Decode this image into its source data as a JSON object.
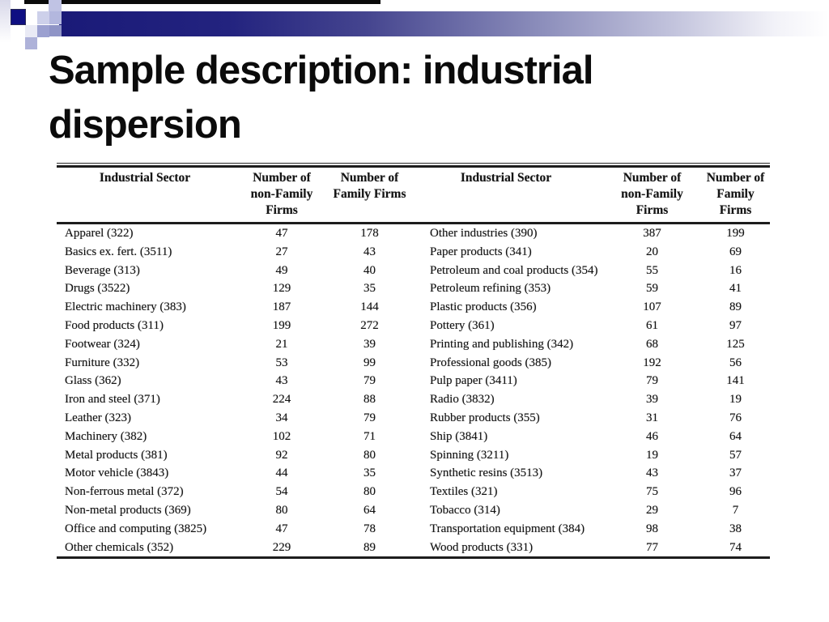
{
  "slide": {
    "title": "Sample description: industrial dispersion"
  },
  "decoration": {
    "accent_navy": "#1a1a78",
    "mosaic_light": "#cdd0ea",
    "mosaic_medium": "#9ba0d0"
  },
  "table": {
    "header": {
      "sector": "Industrial Sector",
      "nonfamily": "Number of\nnon-Family\nFirms",
      "family": "Number of\nFamily Firms"
    },
    "rows": [
      [
        "Apparel (322)",
        "47",
        "178",
        "Other industries (390)",
        "387",
        "199"
      ],
      [
        "Basics ex. fert. (3511)",
        "27",
        "43",
        "Paper products (341)",
        "20",
        "69"
      ],
      [
        "Beverage (313)",
        "49",
        "40",
        "Petroleum and coal products (354)",
        "55",
        "16"
      ],
      [
        "Drugs (3522)",
        "129",
        "35",
        "Petroleum refining (353)",
        "59",
        "41"
      ],
      [
        "Electric machinery (383)",
        "187",
        "144",
        "Plastic products (356)",
        "107",
        "89"
      ],
      [
        "Food products (311)",
        "199",
        "272",
        "Pottery (361)",
        "61",
        "97"
      ],
      [
        "Footwear (324)",
        "21",
        "39",
        "Printing and publishing (342)",
        "68",
        "125"
      ],
      [
        "Furniture (332)",
        "53",
        "99",
        "Professional goods (385)",
        "192",
        "56"
      ],
      [
        "Glass (362)",
        "43",
        "79",
        "Pulp paper (3411)",
        "79",
        "141"
      ],
      [
        "Iron and steel (371)",
        "224",
        "88",
        "Radio (3832)",
        "39",
        "19"
      ],
      [
        "Leather (323)",
        "34",
        "79",
        "Rubber products (355)",
        "31",
        "76"
      ],
      [
        "Machinery (382)",
        "102",
        "71",
        "Ship (3841)",
        "46",
        "64"
      ],
      [
        "Metal products (381)",
        "92",
        "80",
        "Spinning (3211)",
        "19",
        "57"
      ],
      [
        "Motor vehicle (3843)",
        "44",
        "35",
        "Synthetic resins (3513)",
        "43",
        "37"
      ],
      [
        "Non-ferrous metal (372)",
        "54",
        "80",
        "Textiles (321)",
        "75",
        "96"
      ],
      [
        "Non-metal products (369)",
        "80",
        "64",
        "Tobacco (314)",
        "29",
        "7"
      ],
      [
        "Office and computing (3825)",
        "47",
        "78",
        "Transportation equipment (384)",
        "98",
        "38"
      ],
      [
        "Other chemicals (352)",
        "229",
        "89",
        "Wood products (331)",
        "77",
        "74"
      ]
    ]
  }
}
